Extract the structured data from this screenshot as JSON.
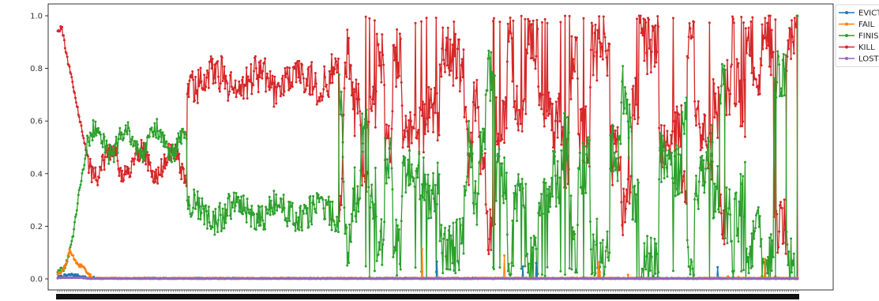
{
  "chart_data": {
    "type": "line",
    "title": "",
    "xlabel": "",
    "ylabel": "",
    "ylim": [
      0.0,
      1.0
    ],
    "y_ticks": [
      "0.0",
      "0.2",
      "0.4",
      "0.6",
      "0.8",
      "1.0"
    ],
    "x_tick_labels": "dense, unreadable (overlapping category labels)",
    "grid": false,
    "legend_placement": "outside upper-right",
    "n_points": 1000,
    "series": [
      {
        "name": "EVICT",
        "color": "#1f77b4",
        "description": "near 0 throughout, small bump ~0.01 near start, occasional spikes to ~0.08 late",
        "keypoints": [
          [
            0,
            0.005
          ],
          [
            10,
            0.012
          ],
          [
            20,
            0.016
          ],
          [
            30,
            0.01
          ],
          [
            40,
            0.003
          ],
          [
            100,
            0.001
          ],
          [
            600,
            0.002
          ],
          [
            660,
            0.02
          ],
          [
            700,
            0.03
          ],
          [
            728,
            0.08
          ],
          [
            734,
            0.05
          ],
          [
            780,
            0.02
          ],
          [
            960,
            0.04
          ],
          [
            1000,
            0.0
          ]
        ]
      },
      {
        "name": "FAIL",
        "color": "#ff7f0e",
        "description": "rises to ~0.11 early then drops to ~0, scattered small spikes",
        "keypoints": [
          [
            0,
            0.02
          ],
          [
            6,
            0.03
          ],
          [
            12,
            0.06
          ],
          [
            16,
            0.11
          ],
          [
            20,
            0.09
          ],
          [
            28,
            0.05
          ],
          [
            34,
            0.05
          ],
          [
            40,
            0.02
          ],
          [
            48,
            0.005
          ],
          [
            80,
            0.002
          ],
          [
            200,
            0.003
          ],
          [
            500,
            0.02
          ],
          [
            600,
            0.03
          ],
          [
            700,
            0.13
          ],
          [
            940,
            0.04
          ],
          [
            1000,
            0.0
          ]
        ]
      },
      {
        "name": "FINISH",
        "color": "#2ca02c",
        "description": "rises to ~0.55 by index 40, ~0.55 plateau to 170, drops to ~0.25 region, highly volatile 0-0.85 after ~380",
        "keypoints": [
          [
            0,
            0.03
          ],
          [
            10,
            0.04
          ],
          [
            20,
            0.15
          ],
          [
            30,
            0.35
          ],
          [
            40,
            0.5
          ],
          [
            50,
            0.55
          ],
          [
            100,
            0.55
          ],
          [
            150,
            0.53
          ],
          [
            170,
            0.52
          ],
          [
            180,
            0.28
          ],
          [
            250,
            0.25
          ],
          [
            340,
            0.22
          ],
          [
            380,
            0.28
          ],
          [
            420,
            0.8
          ],
          [
            460,
            0.45
          ],
          [
            500,
            0.1
          ],
          [
            540,
            0.3
          ],
          [
            600,
            0.05
          ],
          [
            640,
            0.3
          ],
          [
            700,
            0.3
          ],
          [
            800,
            0.4
          ],
          [
            900,
            0.3
          ],
          [
            1000,
            1.0
          ]
        ]
      },
      {
        "name": "KILL",
        "color": "#d62728",
        "description": "starts ~0.95, drops to ~0.45 by index 40, ~0.45 plateau, rises to ~0.75 at 180, volatile 0.05-1.0 after ~380",
        "keypoints": [
          [
            0,
            0.95
          ],
          [
            6,
            0.95
          ],
          [
            12,
            0.85
          ],
          [
            20,
            0.75
          ],
          [
            30,
            0.6
          ],
          [
            40,
            0.47
          ],
          [
            60,
            0.45
          ],
          [
            120,
            0.44
          ],
          [
            170,
            0.47
          ],
          [
            180,
            0.7
          ],
          [
            250,
            0.75
          ],
          [
            340,
            0.78
          ],
          [
            380,
            0.72
          ],
          [
            420,
            0.2
          ],
          [
            460,
            0.55
          ],
          [
            500,
            0.9
          ],
          [
            540,
            0.7
          ],
          [
            600,
            0.95
          ],
          [
            640,
            0.7
          ],
          [
            700,
            0.7
          ],
          [
            800,
            0.6
          ],
          [
            900,
            0.7
          ],
          [
            1000,
            0.0
          ]
        ]
      },
      {
        "name": "LOST",
        "color": "#9467bd",
        "description": "essentially 0 throughout",
        "keypoints": [
          [
            0,
            0.003
          ],
          [
            20,
            0.005
          ],
          [
            40,
            0.002
          ],
          [
            100,
            0.001
          ],
          [
            1000,
            0.0
          ]
        ]
      }
    ]
  }
}
